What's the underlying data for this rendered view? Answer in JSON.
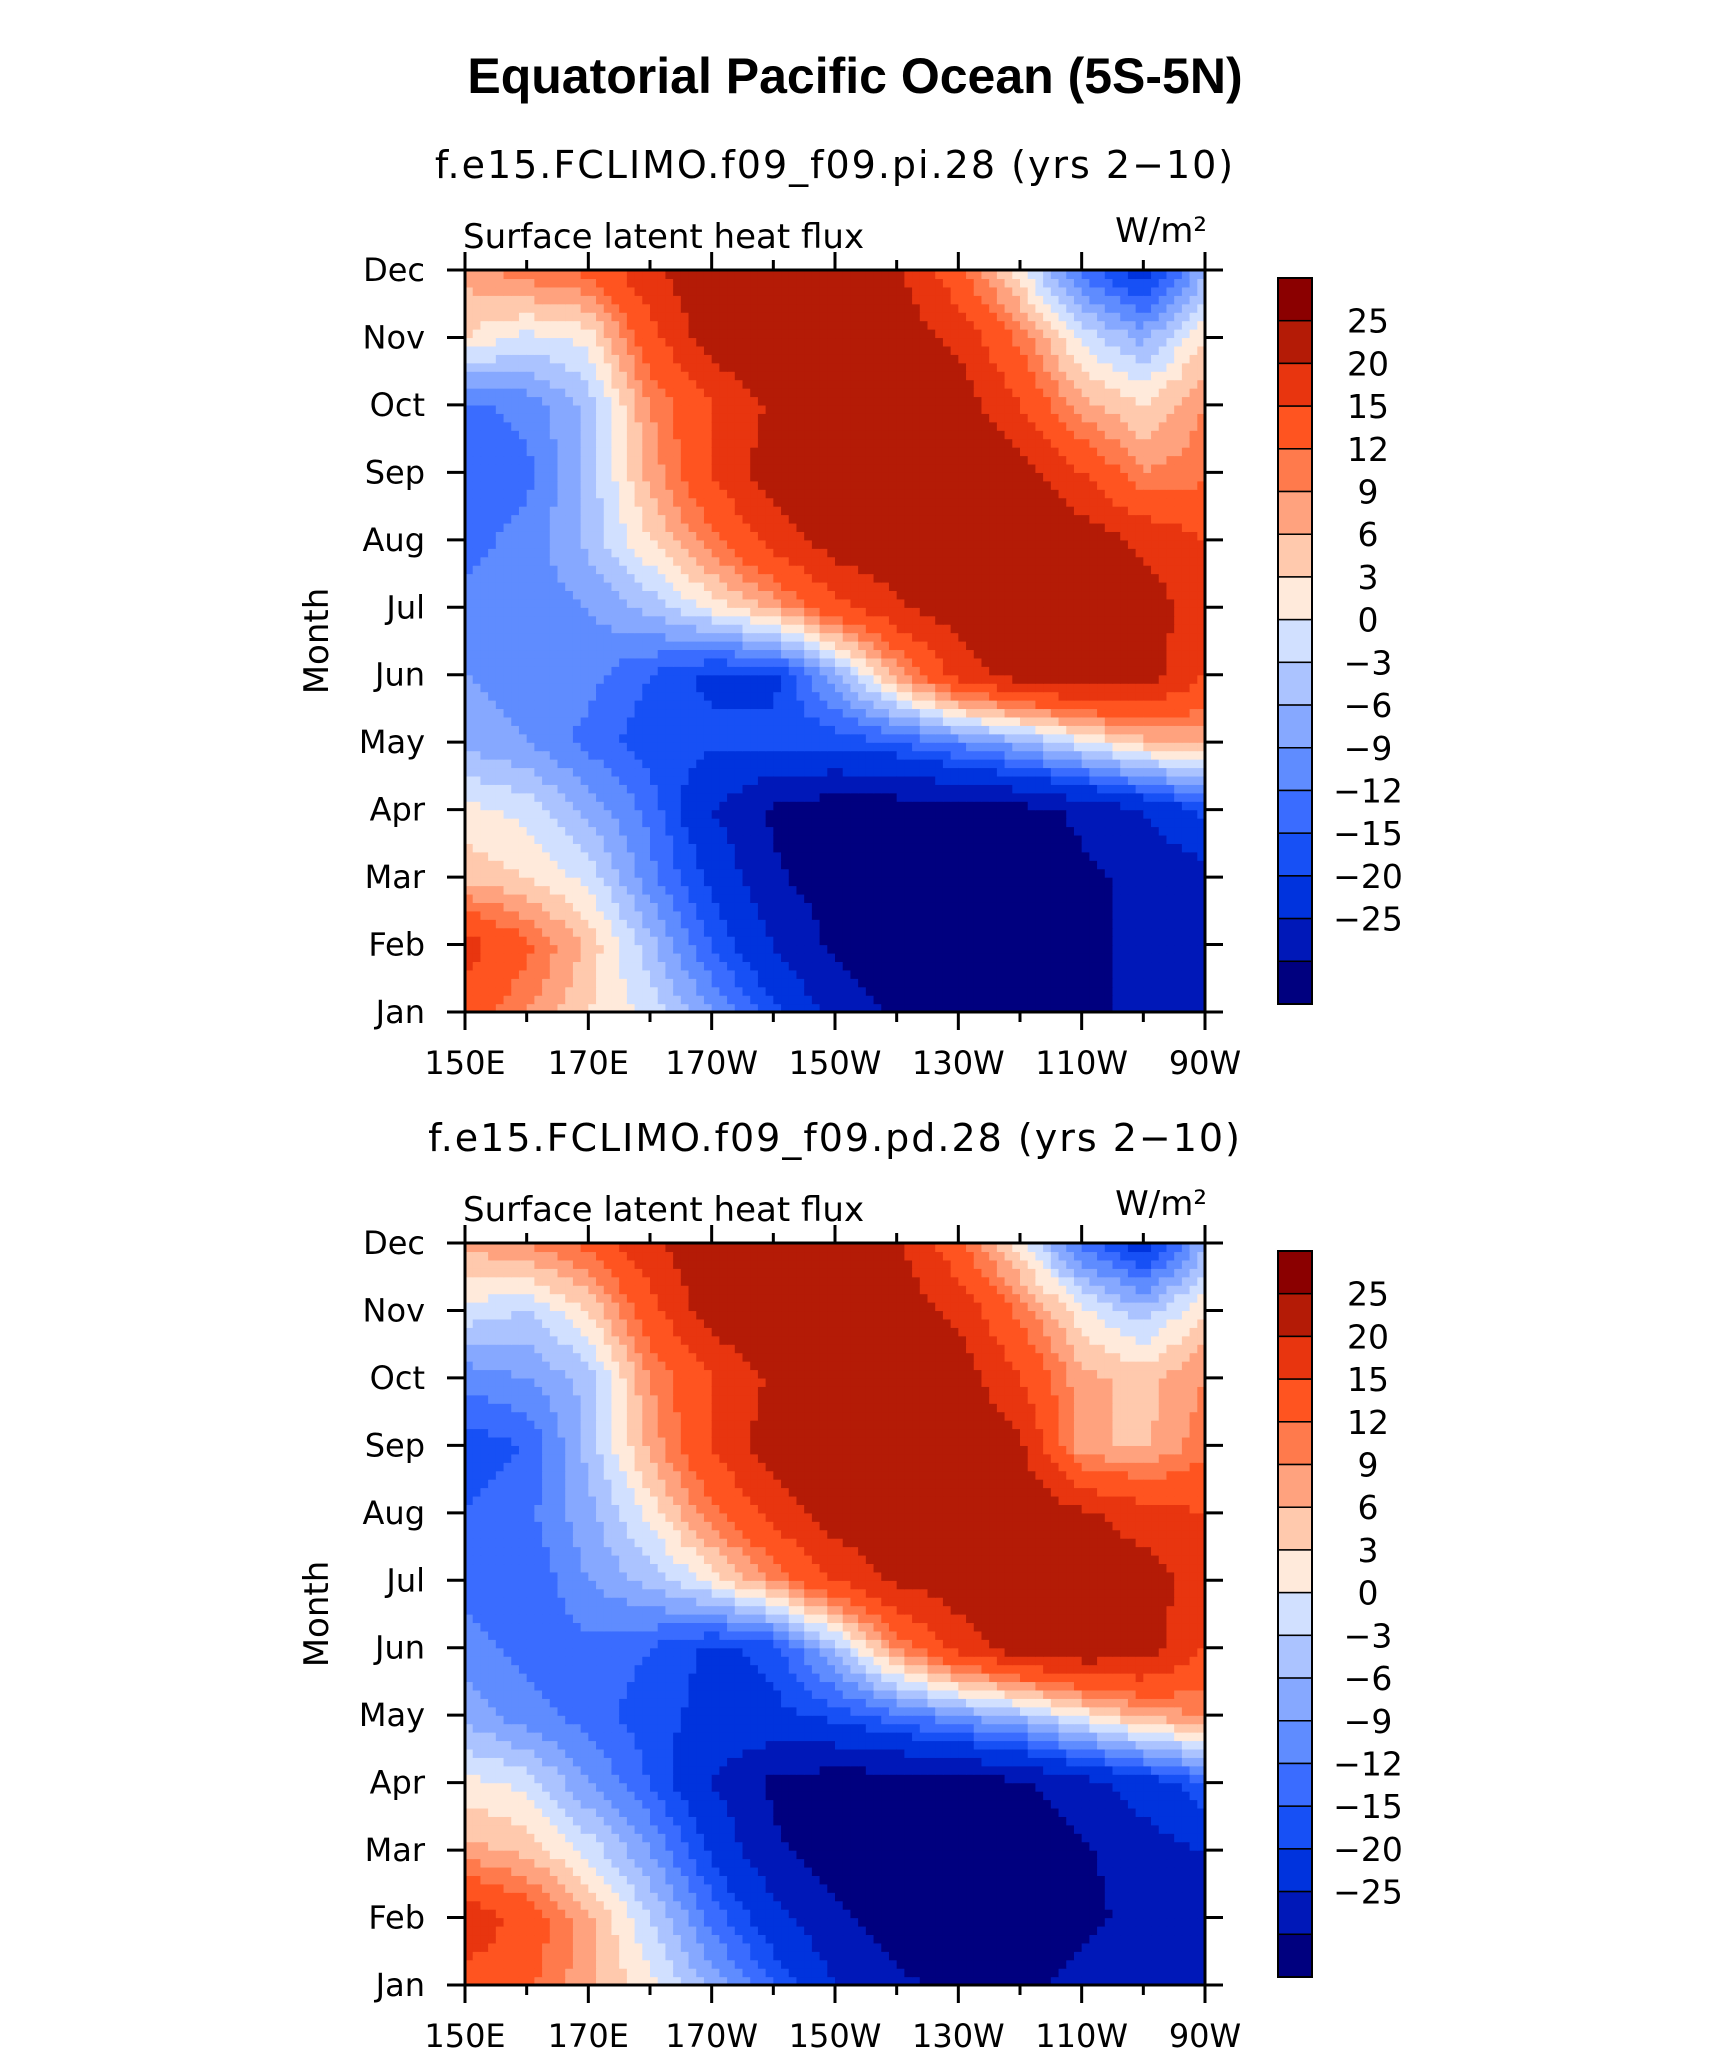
{
  "figure": {
    "title": "Equatorial Pacific Ocean (5S-5N)"
  },
  "palette": [
    "#00007f",
    "#0018b8",
    "#0033dd",
    "#1750f5",
    "#3a6cff",
    "#5f8cff",
    "#86a8ff",
    "#abc3ff",
    "#d1e0ff",
    "#ffeadb",
    "#ffc9ad",
    "#ffa27e",
    "#ff7a4c",
    "#ff5420",
    "#e8350f",
    "#b41b06",
    "#8b0000"
  ],
  "chart_data": [
    {
      "type": "heatmap",
      "subtitle": "f.e15.FCLIMO.f09_f09.pi.28 (yrs 2−10)",
      "variable": "Surface latent heat flux",
      "units": "W/m²",
      "ylabel": "Month",
      "x_ticks": [
        "150E",
        "170E",
        "170W",
        "150W",
        "130W",
        "110W",
        "90W"
      ],
      "y_ticks": [
        "Jan",
        "Feb",
        "Mar",
        "Apr",
        "May",
        "Jun",
        "Jul",
        "Aug",
        "Sep",
        "Oct",
        "Nov",
        "Dec"
      ],
      "xlim": [
        "150E",
        "90W"
      ],
      "colorbar_levels": [
        "25",
        "20",
        "15",
        "12",
        "9",
        "6",
        "3",
        "0",
        "−3",
        "−6",
        "−9",
        "−12",
        "−15",
        "−20",
        "−25"
      ],
      "x_lon": [
        150,
        160,
        170,
        180,
        190,
        200,
        210,
        220,
        230,
        240,
        250,
        260,
        270
      ],
      "z": [
        [
          18,
          12,
          6,
          2,
          -6,
          -14,
          -22,
          -26,
          -27,
          -27,
          -26,
          -24,
          -20
        ],
        [
          22,
          16,
          8,
          -2,
          -12,
          -20,
          -26,
          -28,
          -28,
          -28,
          -26,
          -24,
          -22
        ],
        [
          8,
          6,
          2,
          -8,
          -16,
          -24,
          -28,
          -28,
          -28,
          -28,
          -26,
          -24,
          -22
        ],
        [
          4,
          2,
          -4,
          -10,
          -20,
          -26,
          -28,
          -28,
          -28,
          -27,
          -24,
          -20,
          -14
        ],
        [
          -4,
          -6,
          -10,
          -14,
          -14,
          -14,
          -14,
          -12,
          -8,
          -4,
          2,
          8,
          10
        ],
        [
          -6,
          -8,
          -8,
          -12,
          -16,
          -16,
          -4,
          10,
          22,
          28,
          30,
          28,
          20
        ],
        [
          -8,
          -8,
          -6,
          -2,
          4,
          10,
          18,
          24,
          28,
          30,
          30,
          28,
          22
        ],
        [
          -10,
          -8,
          -2,
          6,
          14,
          22,
          28,
          30,
          30,
          30,
          28,
          24,
          20
        ],
        [
          -12,
          -10,
          -2,
          10,
          20,
          28,
          30,
          30,
          30,
          28,
          20,
          12,
          14
        ],
        [
          -10,
          -8,
          -2,
          12,
          20,
          26,
          30,
          30,
          28,
          20,
          10,
          6,
          12
        ],
        [
          6,
          2,
          4,
          18,
          28,
          30,
          30,
          28,
          24,
          14,
          2,
          -4,
          6
        ],
        [
          10,
          14,
          16,
          24,
          30,
          30,
          30,
          26,
          16,
          4,
          -10,
          -18,
          -4
        ]
      ]
    },
    {
      "type": "heatmap",
      "subtitle": "f.e15.FCLIMO.f09_f09.pd.28 (yrs 2−10)",
      "variable": "Surface latent heat flux",
      "units": "W/m²",
      "ylabel": "Month",
      "x_ticks": [
        "150E",
        "170E",
        "170W",
        "150W",
        "130W",
        "110W",
        "90W"
      ],
      "y_ticks": [
        "Jan",
        "Feb",
        "Mar",
        "Apr",
        "May",
        "Jun",
        "Jul",
        "Aug",
        "Sep",
        "Oct",
        "Nov",
        "Dec"
      ],
      "xlim": [
        "150E",
        "90W"
      ],
      "colorbar_levels": [
        "25",
        "20",
        "15",
        "12",
        "9",
        "6",
        "3",
        "0",
        "−3",
        "−6",
        "−9",
        "−12",
        "−15",
        "−20",
        "−25"
      ],
      "x_lon": [
        150,
        160,
        170,
        180,
        190,
        200,
        210,
        220,
        230,
        240,
        250,
        260,
        270
      ],
      "z": [
        [
          18,
          16,
          10,
          4,
          -4,
          -12,
          -20,
          -24,
          -26,
          -26,
          -24,
          -22,
          -20
        ],
        [
          24,
          18,
          10,
          0,
          -10,
          -18,
          -24,
          -28,
          -28,
          -28,
          -26,
          -24,
          -22
        ],
        [
          10,
          8,
          2,
          -6,
          -16,
          -24,
          -28,
          -28,
          -28,
          -28,
          -26,
          -22,
          -20
        ],
        [
          4,
          2,
          -6,
          -12,
          -20,
          -26,
          -28,
          -28,
          -28,
          -26,
          -22,
          -18,
          -12
        ],
        [
          -4,
          -8,
          -10,
          -14,
          -16,
          -16,
          -14,
          -10,
          -6,
          -2,
          4,
          10,
          12
        ],
        [
          -8,
          -10,
          -10,
          -12,
          -16,
          -14,
          -2,
          12,
          22,
          28,
          30,
          28,
          20
        ],
        [
          -10,
          -12,
          -6,
          -2,
          4,
          12,
          20,
          26,
          28,
          30,
          30,
          28,
          22
        ],
        [
          -12,
          -10,
          -4,
          4,
          14,
          22,
          28,
          30,
          30,
          30,
          26,
          22,
          20
        ],
        [
          -14,
          -12,
          -2,
          10,
          20,
          28,
          30,
          30,
          30,
          26,
          10,
          8,
          14
        ],
        [
          -8,
          -6,
          -2,
          12,
          20,
          26,
          30,
          30,
          28,
          20,
          10,
          8,
          12
        ],
        [
          2,
          0,
          6,
          18,
          28,
          30,
          30,
          28,
          24,
          14,
          4,
          -2,
          6
        ],
        [
          10,
          12,
          16,
          24,
          30,
          30,
          30,
          26,
          16,
          4,
          -10,
          -18,
          -4
        ]
      ]
    }
  ]
}
